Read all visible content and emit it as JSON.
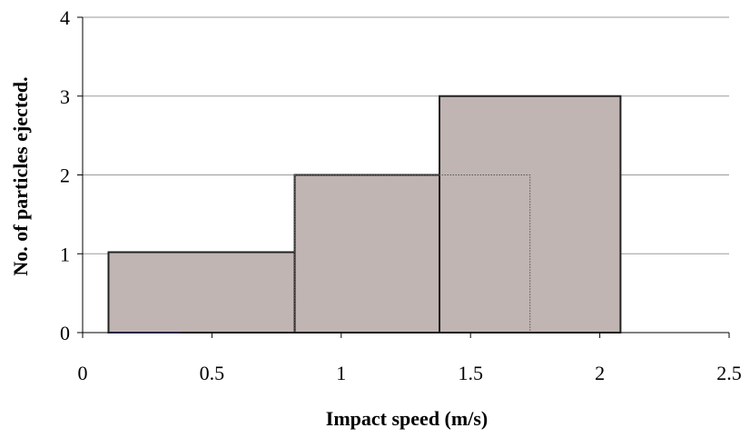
{
  "chart_data": {
    "type": "bar",
    "title": "",
    "xlabel": "Impact speed (m/s)",
    "ylabel": "No. of particles ejected.",
    "xlim": [
      0,
      2.5
    ],
    "ylim": [
      0,
      4
    ],
    "x_ticks": [
      "0",
      "0.5",
      "1",
      "1.5",
      "2",
      "2.5"
    ],
    "y_ticks": [
      "0",
      "1",
      "2",
      "3",
      "4"
    ],
    "x_tick_values": [
      0,
      0.5,
      1,
      1.5,
      2,
      2.5
    ],
    "y_tick_values": [
      0,
      1,
      2,
      3,
      4
    ],
    "grid": "horizontal",
    "bars": [
      {
        "x_start": 0.1,
        "x_end": 1.0,
        "value": 1.02
      },
      {
        "x_start": 0.82,
        "x_end": 1.38,
        "value": 2
      },
      {
        "x_start": 1.38,
        "x_end": 2.08,
        "value": 3
      }
    ],
    "dotted_outline": {
      "x_start": 0.82,
      "x_end": 1.73,
      "value": 2
    },
    "baseline_segment": {
      "x_start": 0.1,
      "x_end": 0.38,
      "color": "#2b2b8c"
    },
    "colors": {
      "bar_fill": "#c0b5b2",
      "bar_edge": "#222222",
      "grid": "#9a9a9a"
    }
  }
}
